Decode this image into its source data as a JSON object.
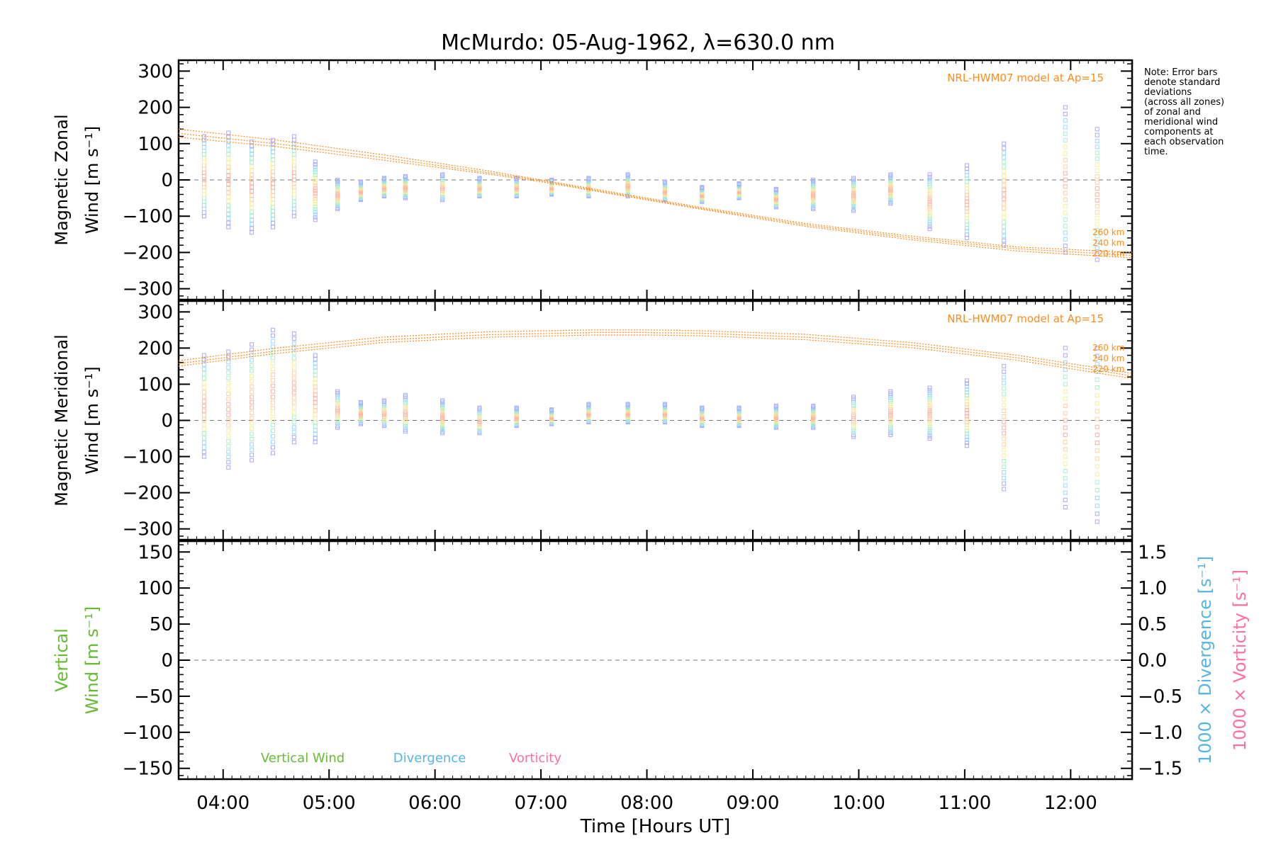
{
  "title": "McMurdo: 05-Aug-1962, λ=630.0 nm",
  "note": "Note: Error bars\ndenote standard\ndeviations\n(across all zones)\nof zonal and\nmeridional wind\ncomponents at\neach observation\ntime.",
  "colors": {
    "model": "#ff8c1a",
    "vertical": "#66bb33",
    "divergence": "#55b5e5",
    "vorticity": "#ff6fa0",
    "error_bar": "#a9a9ff"
  },
  "chart_data": [
    {
      "type": "scatter",
      "panel": "zonal",
      "ylabel": "Magnetic Zonal",
      "ylabel2": "Wind [m s⁻¹]",
      "ylim": [
        -330,
        330
      ],
      "yticks": [
        300,
        200,
        100,
        0,
        -100,
        -200,
        -300
      ],
      "xlim": [
        3.58,
        12.58
      ],
      "model_label": "NRL-HWM07 model at Ap=15",
      "model_series": [
        {
          "name": "260 km",
          "x": [
            3.58,
            4.5,
            5.5,
            6.5,
            7.0,
            7.5,
            8.5,
            9.5,
            10.5,
            11.5,
            12.58
          ],
          "y": [
            140,
            110,
            70,
            25,
            0,
            -25,
            -75,
            -120,
            -155,
            -185,
            -200
          ]
        },
        {
          "name": "240 km",
          "x": [
            3.58,
            4.5,
            5.5,
            6.5,
            7.0,
            7.5,
            8.5,
            9.5,
            10.5,
            11.5,
            12.58
          ],
          "y": [
            128,
            100,
            62,
            20,
            -2,
            -28,
            -78,
            -124,
            -160,
            -190,
            -208
          ]
        },
        {
          "name": "220 km",
          "x": [
            3.58,
            4.5,
            5.5,
            6.5,
            7.0,
            7.5,
            8.5,
            9.5,
            10.5,
            11.5,
            12.58
          ],
          "y": [
            118,
            92,
            55,
            16,
            -5,
            -30,
            -80,
            -128,
            -165,
            -196,
            -215
          ]
        }
      ],
      "observations": [
        {
          "x": 3.82,
          "mean": 10,
          "std": 110
        },
        {
          "x": 4.05,
          "mean": 0,
          "std": 130
        },
        {
          "x": 4.27,
          "mean": -20,
          "std": 125
        },
        {
          "x": 4.47,
          "mean": -10,
          "std": 120
        },
        {
          "x": 4.67,
          "mean": 10,
          "std": 110
        },
        {
          "x": 4.87,
          "mean": -30,
          "std": 80
        },
        {
          "x": 5.08,
          "mean": -40,
          "std": 40
        },
        {
          "x": 5.3,
          "mean": -30,
          "std": 25
        },
        {
          "x": 5.52,
          "mean": -20,
          "std": 25
        },
        {
          "x": 5.72,
          "mean": -20,
          "std": 30
        },
        {
          "x": 6.07,
          "mean": -20,
          "std": 35
        },
        {
          "x": 6.42,
          "mean": -20,
          "std": 25
        },
        {
          "x": 6.77,
          "mean": -20,
          "std": 25
        },
        {
          "x": 7.1,
          "mean": -20,
          "std": 20
        },
        {
          "x": 7.45,
          "mean": -20,
          "std": 25
        },
        {
          "x": 7.82,
          "mean": -15,
          "std": 30
        },
        {
          "x": 8.17,
          "mean": -30,
          "std": 25
        },
        {
          "x": 8.52,
          "mean": -40,
          "std": 20
        },
        {
          "x": 8.87,
          "mean": -30,
          "std": 20
        },
        {
          "x": 9.22,
          "mean": -50,
          "std": 25
        },
        {
          "x": 9.57,
          "mean": -40,
          "std": 40
        },
        {
          "x": 9.95,
          "mean": -40,
          "std": 45
        },
        {
          "x": 10.3,
          "mean": -25,
          "std": 40
        },
        {
          "x": 10.67,
          "mean": -60,
          "std": 75
        },
        {
          "x": 11.02,
          "mean": -60,
          "std": 100
        },
        {
          "x": 11.37,
          "mean": -40,
          "std": 140
        },
        {
          "x": 11.95,
          "mean": 0,
          "std": 200
        },
        {
          "x": 12.25,
          "mean": -40,
          "std": 180
        }
      ]
    },
    {
      "type": "scatter",
      "panel": "meridional",
      "ylabel": "Magnetic Meridional",
      "ylabel2": "Wind [m s⁻¹]",
      "ylim": [
        -330,
        330
      ],
      "yticks": [
        300,
        200,
        100,
        0,
        -100,
        -200,
        -300
      ],
      "xlim": [
        3.58,
        12.58
      ],
      "model_label": "NRL-HWM07 model at Ap=15",
      "model_series": [
        {
          "name": "260 km",
          "x": [
            3.58,
            4.5,
            5.5,
            6.5,
            7.5,
            8.0,
            8.5,
            9.5,
            10.5,
            11.5,
            12.58
          ],
          "y": [
            165,
            200,
            230,
            245,
            250,
            250,
            248,
            238,
            215,
            180,
            130
          ]
        },
        {
          "name": "240 km",
          "x": [
            3.58,
            4.5,
            5.5,
            6.5,
            7.5,
            8.0,
            8.5,
            9.5,
            10.5,
            11.5,
            12.58
          ],
          "y": [
            157,
            192,
            222,
            237,
            243,
            243,
            241,
            230,
            208,
            173,
            123
          ]
        },
        {
          "name": "220 km",
          "x": [
            3.58,
            4.5,
            5.5,
            6.5,
            7.5,
            8.0,
            8.5,
            9.5,
            10.5,
            11.5,
            12.58
          ],
          "y": [
            150,
            185,
            215,
            230,
            236,
            236,
            234,
            223,
            201,
            166,
            116
          ]
        }
      ],
      "observations": [
        {
          "x": 3.82,
          "mean": 40,
          "std": 140
        },
        {
          "x": 4.05,
          "mean": 30,
          "std": 160
        },
        {
          "x": 4.27,
          "mean": 50,
          "std": 160
        },
        {
          "x": 4.47,
          "mean": 80,
          "std": 170
        },
        {
          "x": 4.67,
          "mean": 90,
          "std": 150
        },
        {
          "x": 4.87,
          "mean": 60,
          "std": 120
        },
        {
          "x": 5.08,
          "mean": 30,
          "std": 50
        },
        {
          "x": 5.3,
          "mean": 20,
          "std": 30
        },
        {
          "x": 5.52,
          "mean": 20,
          "std": 35
        },
        {
          "x": 5.72,
          "mean": 20,
          "std": 50
        },
        {
          "x": 6.07,
          "mean": 10,
          "std": 45
        },
        {
          "x": 6.42,
          "mean": 0,
          "std": 35
        },
        {
          "x": 6.77,
          "mean": 10,
          "std": 25
        },
        {
          "x": 7.1,
          "mean": 10,
          "std": 20
        },
        {
          "x": 7.45,
          "mean": 20,
          "std": 25
        },
        {
          "x": 7.82,
          "mean": 20,
          "std": 25
        },
        {
          "x": 8.17,
          "mean": 20,
          "std": 25
        },
        {
          "x": 8.52,
          "mean": 10,
          "std": 25
        },
        {
          "x": 8.87,
          "mean": 10,
          "std": 25
        },
        {
          "x": 9.22,
          "mean": 10,
          "std": 30
        },
        {
          "x": 9.57,
          "mean": 10,
          "std": 30
        },
        {
          "x": 9.95,
          "mean": 10,
          "std": 55
        },
        {
          "x": 10.3,
          "mean": 20,
          "std": 60
        },
        {
          "x": 10.67,
          "mean": 20,
          "std": 70
        },
        {
          "x": 11.02,
          "mean": 20,
          "std": 90
        },
        {
          "x": 11.37,
          "mean": -20,
          "std": 170
        },
        {
          "x": 11.95,
          "mean": -20,
          "std": 220
        },
        {
          "x": 12.25,
          "mean": -40,
          "std": 240
        }
      ]
    },
    {
      "type": "line",
      "panel": "vertical",
      "ylabel": "Vertical",
      "ylabel2": "Wind [m s⁻¹]",
      "ylim": [
        -165,
        165
      ],
      "yticks": [
        150,
        100,
        50,
        0,
        -50,
        -100,
        -150
      ],
      "y2label": "1000 × Divergence [s⁻¹]",
      "y3label": "1000 × Vorticity [s⁻¹]",
      "y2lim": [
        -1.65,
        1.65
      ],
      "y2ticks": [
        "1.5",
        "1.0",
        "0.5",
        "0.0",
        "−0.5",
        "−1.0",
        "−1.5"
      ],
      "xlim": [
        3.58,
        12.58
      ],
      "xticks": [
        "04:00",
        "05:00",
        "06:00",
        "07:00",
        "08:00",
        "09:00",
        "10:00",
        "11:00",
        "12:00"
      ],
      "xtick_values": [
        4,
        5,
        6,
        7,
        8,
        9,
        10,
        11,
        12
      ],
      "xlabel": "Time [Hours UT]",
      "legend": [
        "Vertical Wind",
        "Divergence",
        "Vorticity"
      ],
      "series": []
    }
  ]
}
